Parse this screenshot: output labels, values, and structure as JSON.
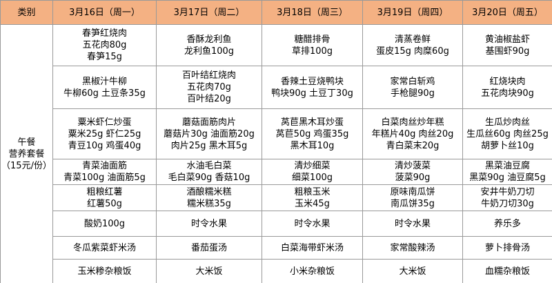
{
  "table": {
    "header": [
      "类别",
      "3月16日（周一）",
      "3月17日（周二）",
      "3月18日（周三）",
      "3月19日（周四）",
      "3月20日（周五）"
    ],
    "category": [
      "午餐",
      "营养套餐",
      "（15元/份）"
    ],
    "rows": [
      [
        [
          "春笋红烧肉",
          "五花肉80g",
          "春笋15g"
        ],
        [
          "香酥龙利鱼",
          "龙利鱼100g"
        ],
        [
          "糖醋排骨",
          "草排100g"
        ],
        [
          "清蒸卷鲜",
          "蛋皮15g 肉糜60g"
        ],
        [
          "黄油椒盐虾",
          "基围虾90g"
        ]
      ],
      [
        [
          "黑椒汁牛柳",
          "牛柳60g 土豆条35g"
        ],
        [
          "百叶结红烧肉",
          "五花肉70g",
          "百叶结20g"
        ],
        [
          "香辣土豆烧鸭块",
          "鸭块90g 土豆丁30g"
        ],
        [
          "家常白斩鸡",
          "手枪腿90g"
        ],
        [
          "红烧块肉",
          "五花肉块90g"
        ]
      ],
      [
        [
          "粟米虾仁炒蛋",
          "粟米25g 虾仁25g",
          "青豆10g 鸡蛋40g"
        ],
        [
          "蘑菇面筋肉片",
          "蘑菇片30g 油面筋20g",
          "肉片25g 黑木耳5g"
        ],
        [
          "莴苣黑木耳炒蛋",
          "莴苣50g 鸡蛋35g",
          "黑木耳10g"
        ],
        [
          "白菜肉丝炒年糕",
          "年糕片40g 肉丝20g",
          "青白菜末20g"
        ],
        [
          "生瓜炒肉丝",
          "生瓜丝60g 肉丝25g",
          "胡萝卜丝10g"
        ]
      ],
      [
        [
          "青菜油面筋",
          "青菜100g 油面筋5g"
        ],
        [
          "水油毛白菜",
          "毛白菜90g 香菇10g"
        ],
        [
          "清炒细菜",
          "细菜100g"
        ],
        [
          "清炒菠菜",
          "菠菜90g"
        ],
        [
          "黑菜油豆腐",
          "黑菜90g 油豆腐5g"
        ]
      ],
      [
        [
          "粗粮红薯",
          "红薯50g"
        ],
        [
          "酒酿糯米糕",
          "糯米糕35g"
        ],
        [
          "粗粮玉米",
          "玉米45g"
        ],
        [
          "原味南瓜饼",
          "南瓜饼35g"
        ],
        [
          "安井牛奶刀切",
          "牛奶刀切30g"
        ]
      ],
      [
        [
          "酸奶100g"
        ],
        [
          "时令水果"
        ],
        [
          "时令水果"
        ],
        [
          "时令水果"
        ],
        [
          "养乐多"
        ]
      ],
      [
        [
          "冬瓜紫菜虾米汤"
        ],
        [
          "番茄蛋汤"
        ],
        [
          "白菜海带虾米汤"
        ],
        [
          "家常酸辣汤"
        ],
        [
          "萝卜排骨汤"
        ]
      ],
      [
        [
          "玉米糁杂粮饭"
        ],
        [
          "大米饭"
        ],
        [
          "小米杂粮饭"
        ],
        [
          "大米饭"
        ],
        [
          "血糯杂粮饭"
        ]
      ]
    ]
  }
}
